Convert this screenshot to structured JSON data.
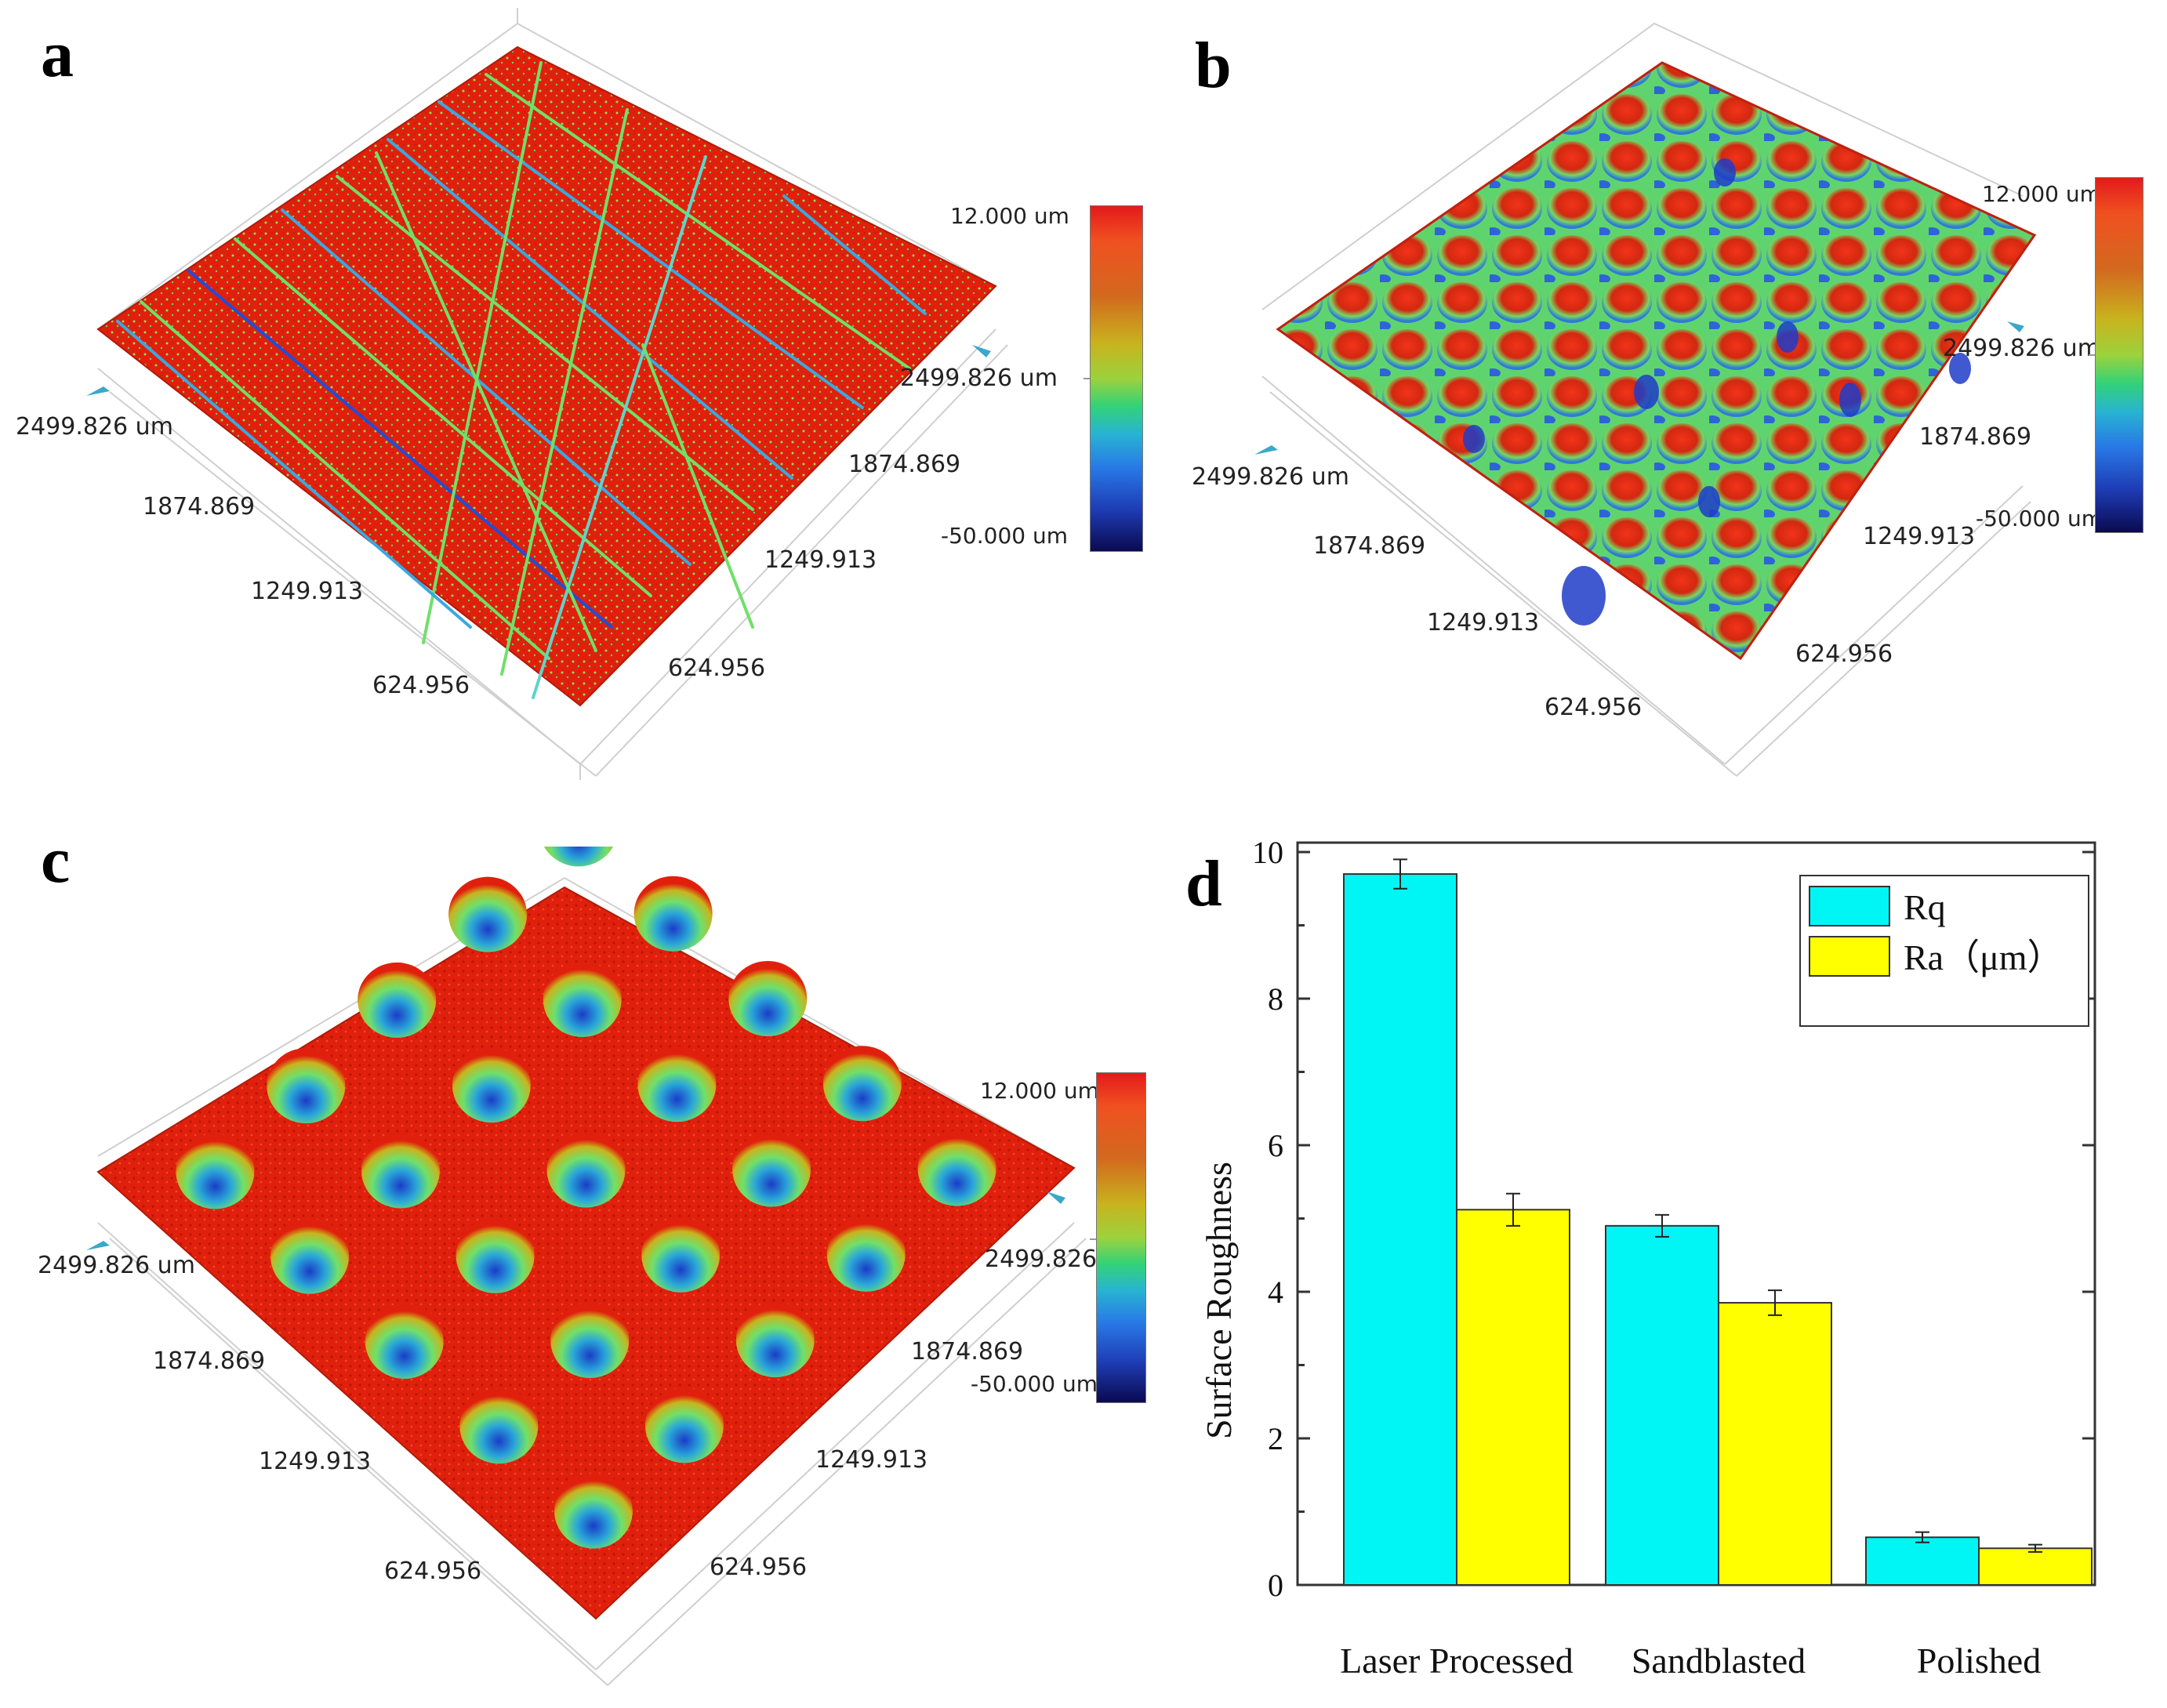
{
  "panel_labels": [
    "a",
    "b",
    "c",
    "d"
  ],
  "surface_panels": [
    {
      "name": "a",
      "axis_left": [
        "2499.826 um",
        "1874.869",
        "1249.913",
        "624.956"
      ],
      "axis_right": [
        "2499.826 um",
        "1874.869",
        "1249.913",
        "624.956"
      ],
      "colorbar": {
        "max": "12.000 um",
        "min": "-50.000 um"
      }
    },
    {
      "name": "b",
      "axis_left": [
        "2499.826 um",
        "1874.869",
        "1249.913",
        "624.956"
      ],
      "axis_right": [
        "2499.826 um",
        "1874.869",
        "1249.913",
        "624.956"
      ],
      "colorbar": {
        "max": "12.000 um",
        "min": "-50.000 um"
      }
    },
    {
      "name": "c",
      "axis_left": [
        "2499.826 um",
        "1874.869",
        "1249.913",
        "624.956"
      ],
      "axis_right": [
        "2499.826",
        "1874.869",
        "1249.913",
        "624.956"
      ],
      "colorbar": {
        "max": "12.000 um",
        "min": "-50.000 um"
      }
    }
  ],
  "colors": {
    "rq": "#00f5f5",
    "ra": "#ffff00",
    "surface_red": "#e0200c",
    "surface_green": "#6fe06a",
    "surface_blue": "#1f4ed8"
  },
  "chart_data": {
    "type": "bar",
    "title": "",
    "xlabel": "",
    "ylabel": "Surface Roughness",
    "ylim": [
      0,
      10
    ],
    "yticks": [
      "0",
      "2",
      "4",
      "6",
      "8",
      "10"
    ],
    "categories": [
      "Laser Processed",
      "Sandblasted",
      "Polished"
    ],
    "series": [
      {
        "name": "Rq",
        "values": [
          9.7,
          4.9,
          0.65
        ],
        "errors": [
          0.2,
          0.15,
          0.07
        ]
      },
      {
        "name": "Ra（μm）",
        "values": [
          5.12,
          3.85,
          0.5
        ],
        "errors": [
          0.22,
          0.17,
          0.05
        ]
      }
    ],
    "legend_position": "top-right"
  }
}
